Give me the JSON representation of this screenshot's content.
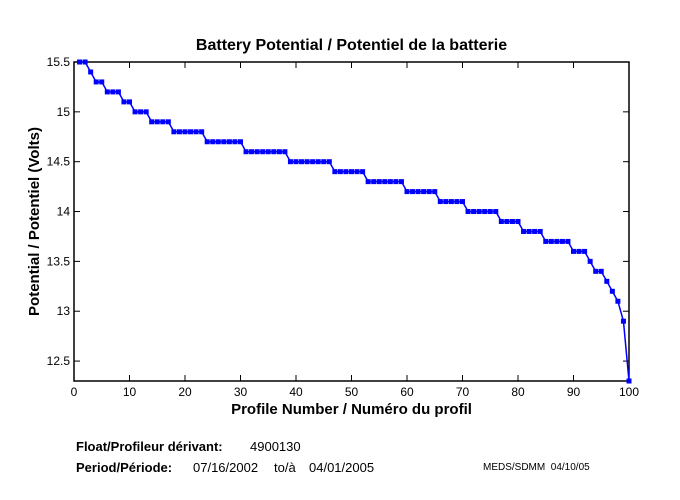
{
  "chart_data": {
    "type": "line",
    "title": "Battery Potential / Potentiel de la batterie",
    "xlabel": "Profile Number / Numéro du profil",
    "ylabel": "Potential / Potentiel (Volts)",
    "xlim": [
      0,
      100
    ],
    "ylim": [
      12.3,
      15.5
    ],
    "xticks": [
      0,
      10,
      20,
      30,
      40,
      50,
      60,
      70,
      80,
      90,
      100
    ],
    "yticks": [
      12.5,
      13,
      13.5,
      14,
      14.5,
      15,
      15.5
    ],
    "grid": false,
    "color": "#0000ff",
    "marker": "square",
    "series": [
      {
        "x": [
          1,
          2,
          3,
          4,
          5,
          6,
          7,
          8,
          9,
          10,
          11,
          12,
          13,
          14,
          15,
          16,
          17,
          18,
          19,
          20,
          21,
          22,
          23,
          24,
          25,
          26,
          27,
          28,
          29,
          30,
          31,
          32,
          33,
          34,
          35,
          36,
          37,
          38,
          39,
          40,
          41,
          42,
          43,
          44,
          45,
          46,
          47,
          48,
          49,
          50,
          51,
          52,
          53,
          54,
          55,
          56,
          57,
          58,
          59,
          60,
          61,
          62,
          63,
          64,
          65,
          66,
          67,
          68,
          69,
          70,
          71,
          72,
          73,
          74,
          75,
          76,
          77,
          78,
          79,
          80,
          81,
          82,
          83,
          84,
          85,
          86,
          87,
          88,
          89,
          90,
          91,
          92,
          93,
          94,
          95,
          96,
          97,
          98,
          99,
          100
        ],
        "values": [
          15.5,
          15.5,
          15.4,
          15.3,
          15.3,
          15.2,
          15.2,
          15.2,
          15.1,
          15.1,
          15.0,
          15.0,
          15.0,
          14.9,
          14.9,
          14.9,
          14.9,
          14.8,
          14.8,
          14.8,
          14.8,
          14.8,
          14.8,
          14.7,
          14.7,
          14.7,
          14.7,
          14.7,
          14.7,
          14.7,
          14.6,
          14.6,
          14.6,
          14.6,
          14.6,
          14.6,
          14.6,
          14.6,
          14.5,
          14.5,
          14.5,
          14.5,
          14.5,
          14.5,
          14.5,
          14.5,
          14.4,
          14.4,
          14.4,
          14.4,
          14.4,
          14.4,
          14.3,
          14.3,
          14.3,
          14.3,
          14.3,
          14.3,
          14.3,
          14.2,
          14.2,
          14.2,
          14.2,
          14.2,
          14.2,
          14.1,
          14.1,
          14.1,
          14.1,
          14.1,
          14.0,
          14.0,
          14.0,
          14.0,
          14.0,
          14.0,
          13.9,
          13.9,
          13.9,
          13.9,
          13.8,
          13.8,
          13.8,
          13.8,
          13.7,
          13.7,
          13.7,
          13.7,
          13.7,
          13.6,
          13.6,
          13.6,
          13.5,
          13.4,
          13.4,
          13.3,
          13.2,
          13.1,
          12.9,
          12.3
        ]
      }
    ]
  },
  "footer": {
    "float_label": "Float/Profileur dérivant:",
    "float_value": "4900130",
    "period_label": "Period/Période:",
    "period_start": "07/16/2002",
    "period_sep": "to/à",
    "period_end": "04/01/2005",
    "credit": "MEDS/SDMM  04/10/05"
  }
}
